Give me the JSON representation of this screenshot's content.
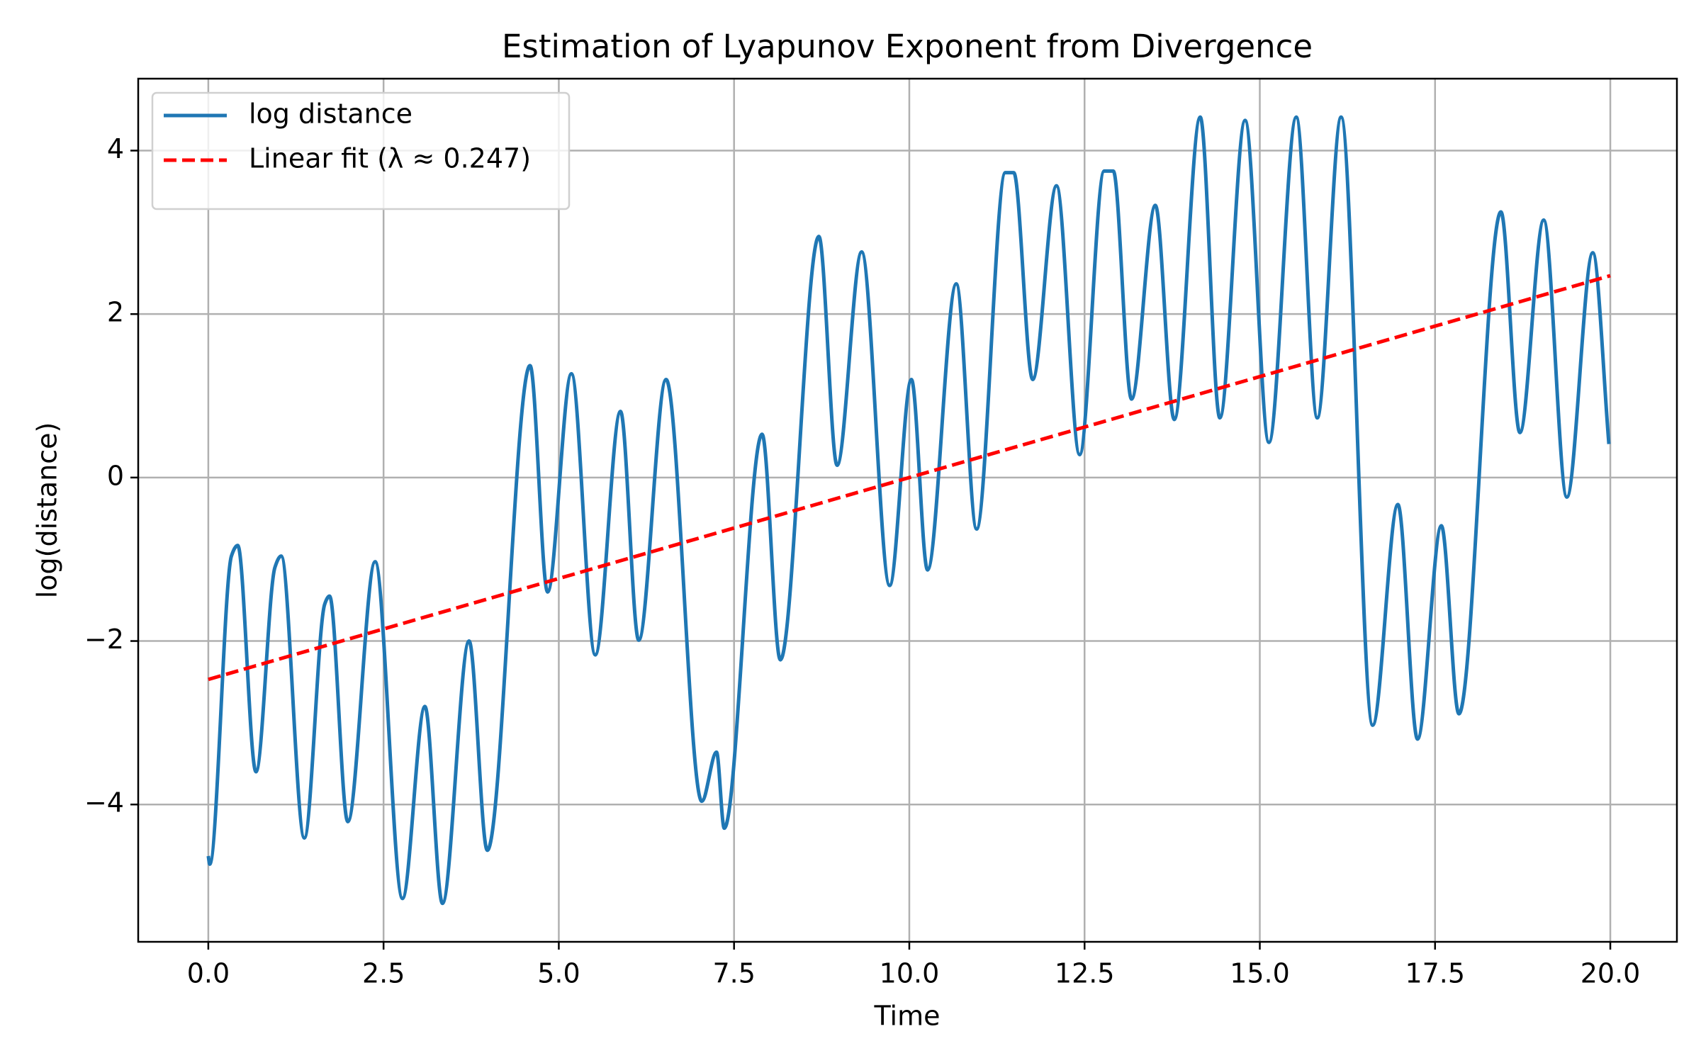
{
  "chart_data": {
    "type": "line",
    "title": "Estimation of Lyapunov Exponent from Divergence",
    "x_label": "Time",
    "y_label": "log(distance)",
    "xlim": [
      -1.0,
      20.95
    ],
    "ylim": [
      -5.68,
      4.88
    ],
    "xticks": [
      {
        "value": 0,
        "label": "0.0"
      },
      {
        "value": 2.5,
        "label": "2.5"
      },
      {
        "value": 5,
        "label": "5.0"
      },
      {
        "value": 7.5,
        "label": "7.5"
      },
      {
        "value": 10,
        "label": "10.0"
      },
      {
        "value": 12.5,
        "label": "12.5"
      },
      {
        "value": 15,
        "label": "15.0"
      },
      {
        "value": 17.5,
        "label": "17.5"
      },
      {
        "value": 20,
        "label": "20.0"
      }
    ],
    "yticks": [
      {
        "value": -4,
        "label": "−4"
      },
      {
        "value": -2,
        "label": "−2"
      },
      0,
      2,
      4
    ],
    "grid": true,
    "legend": "upper left",
    "series": [
      {
        "name": "log distance",
        "color": "#1f77b4",
        "linestyle": "solid",
        "x": [
          0,
          0.02,
          0.33,
          0.42,
          0.68,
          0.95,
          1.04,
          1.37,
          1.66,
          1.73,
          1.99,
          2.38,
          2.77,
          3.09,
          3.34,
          3.72,
          3.98,
          4.59,
          4.84,
          5.18,
          5.52,
          5.88,
          6.14,
          6.53,
          7.04,
          7.25,
          7.36,
          7.9,
          8.16,
          8.71,
          8.97,
          9.32,
          9.72,
          10.03,
          10.26,
          10.67,
          10.96,
          11.37,
          11.49,
          11.76,
          12.1,
          12.43,
          12.78,
          12.91,
          13.17,
          13.51,
          13.78,
          14.15,
          14.43,
          14.79,
          15.13,
          15.52,
          15.82,
          16.16,
          16.61,
          16.97,
          17.25,
          17.59,
          17.84,
          18.44,
          18.71,
          19.05,
          19.38,
          19.75,
          19.98
        ],
        "values": [
          -4.63,
          -4.73,
          -0.96,
          -0.83,
          -3.6,
          -1.1,
          -0.96,
          -4.41,
          -1.55,
          -1.45,
          -4.21,
          -1.03,
          -5.15,
          -2.8,
          -5.21,
          -2.0,
          -4.56,
          1.37,
          -1.4,
          1.27,
          -2.17,
          0.81,
          -1.99,
          1.2,
          -3.96,
          -3.36,
          -4.29,
          0.53,
          -2.23,
          2.95,
          0.15,
          2.76,
          -1.32,
          1.2,
          -1.13,
          2.37,
          -0.63,
          3.73,
          3.73,
          1.2,
          3.57,
          0.28,
          3.75,
          3.75,
          0.96,
          3.33,
          0.71,
          4.41,
          0.73,
          4.37,
          0.43,
          4.41,
          0.73,
          4.41,
          -3.03,
          -0.33,
          -3.2,
          -0.59,
          -2.89,
          3.25,
          0.55,
          3.15,
          -0.24,
          2.75,
          0.41
        ]
      },
      {
        "name": "Linear fit (λ ≈ 0.247)",
        "color": "#ff0000",
        "linestyle": "dashed",
        "x": [
          0,
          20
        ],
        "values": [
          -2.47,
          2.47
        ]
      }
    ]
  }
}
